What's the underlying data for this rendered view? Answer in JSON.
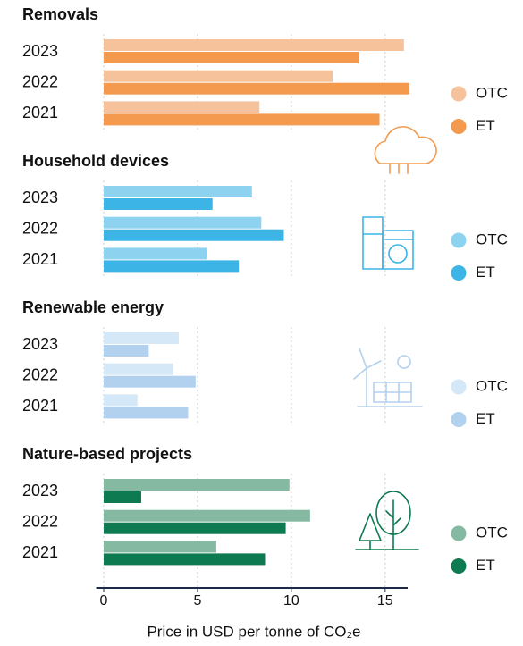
{
  "chart_data": [
    {
      "type": "bar",
      "orientation": "horizontal",
      "title": "Removals",
      "categories": [
        "2023",
        "2022",
        "2021"
      ],
      "series": [
        {
          "name": "OTC",
          "color": "#f6c29c",
          "values": [
            16.0,
            12.2,
            8.3
          ]
        },
        {
          "name": "ET",
          "color": "#f39a4f",
          "values": [
            13.6,
            16.3,
            14.7
          ]
        }
      ]
    },
    {
      "type": "bar",
      "orientation": "horizontal",
      "title": "Household devices",
      "categories": [
        "2023",
        "2022",
        "2021"
      ],
      "series": [
        {
          "name": "OTC",
          "color": "#8dd2ef",
          "values": [
            7.9,
            8.4,
            5.5
          ]
        },
        {
          "name": "ET",
          "color": "#3db4e6",
          "values": [
            5.8,
            9.6,
            7.2
          ]
        }
      ]
    },
    {
      "type": "bar",
      "orientation": "horizontal",
      "title": "Renewable energy",
      "categories": [
        "2023",
        "2022",
        "2021"
      ],
      "series": [
        {
          "name": "OTC",
          "color": "#d5e8f7",
          "values": [
            4.0,
            3.7,
            1.8
          ]
        },
        {
          "name": "ET",
          "color": "#b2d1ef",
          "values": [
            2.4,
            4.9,
            4.5
          ]
        }
      ]
    },
    {
      "type": "bar",
      "orientation": "horizontal",
      "title": "Nature-based projects",
      "categories": [
        "2023",
        "2022",
        "2021"
      ],
      "series": [
        {
          "name": "OTC",
          "color": "#85b9a2",
          "values": [
            9.9,
            11.0,
            6.0
          ]
        },
        {
          "name": "ET",
          "color": "#0d7a51",
          "values": [
            2.0,
            9.7,
            8.6
          ]
        }
      ],
      "xlim": [
        -0.4,
        16.2
      ],
      "xticks": [
        0,
        5,
        10,
        15
      ],
      "x_label": "Price in USD per tonne of CO₂e",
      "grid": true
    }
  ]
}
